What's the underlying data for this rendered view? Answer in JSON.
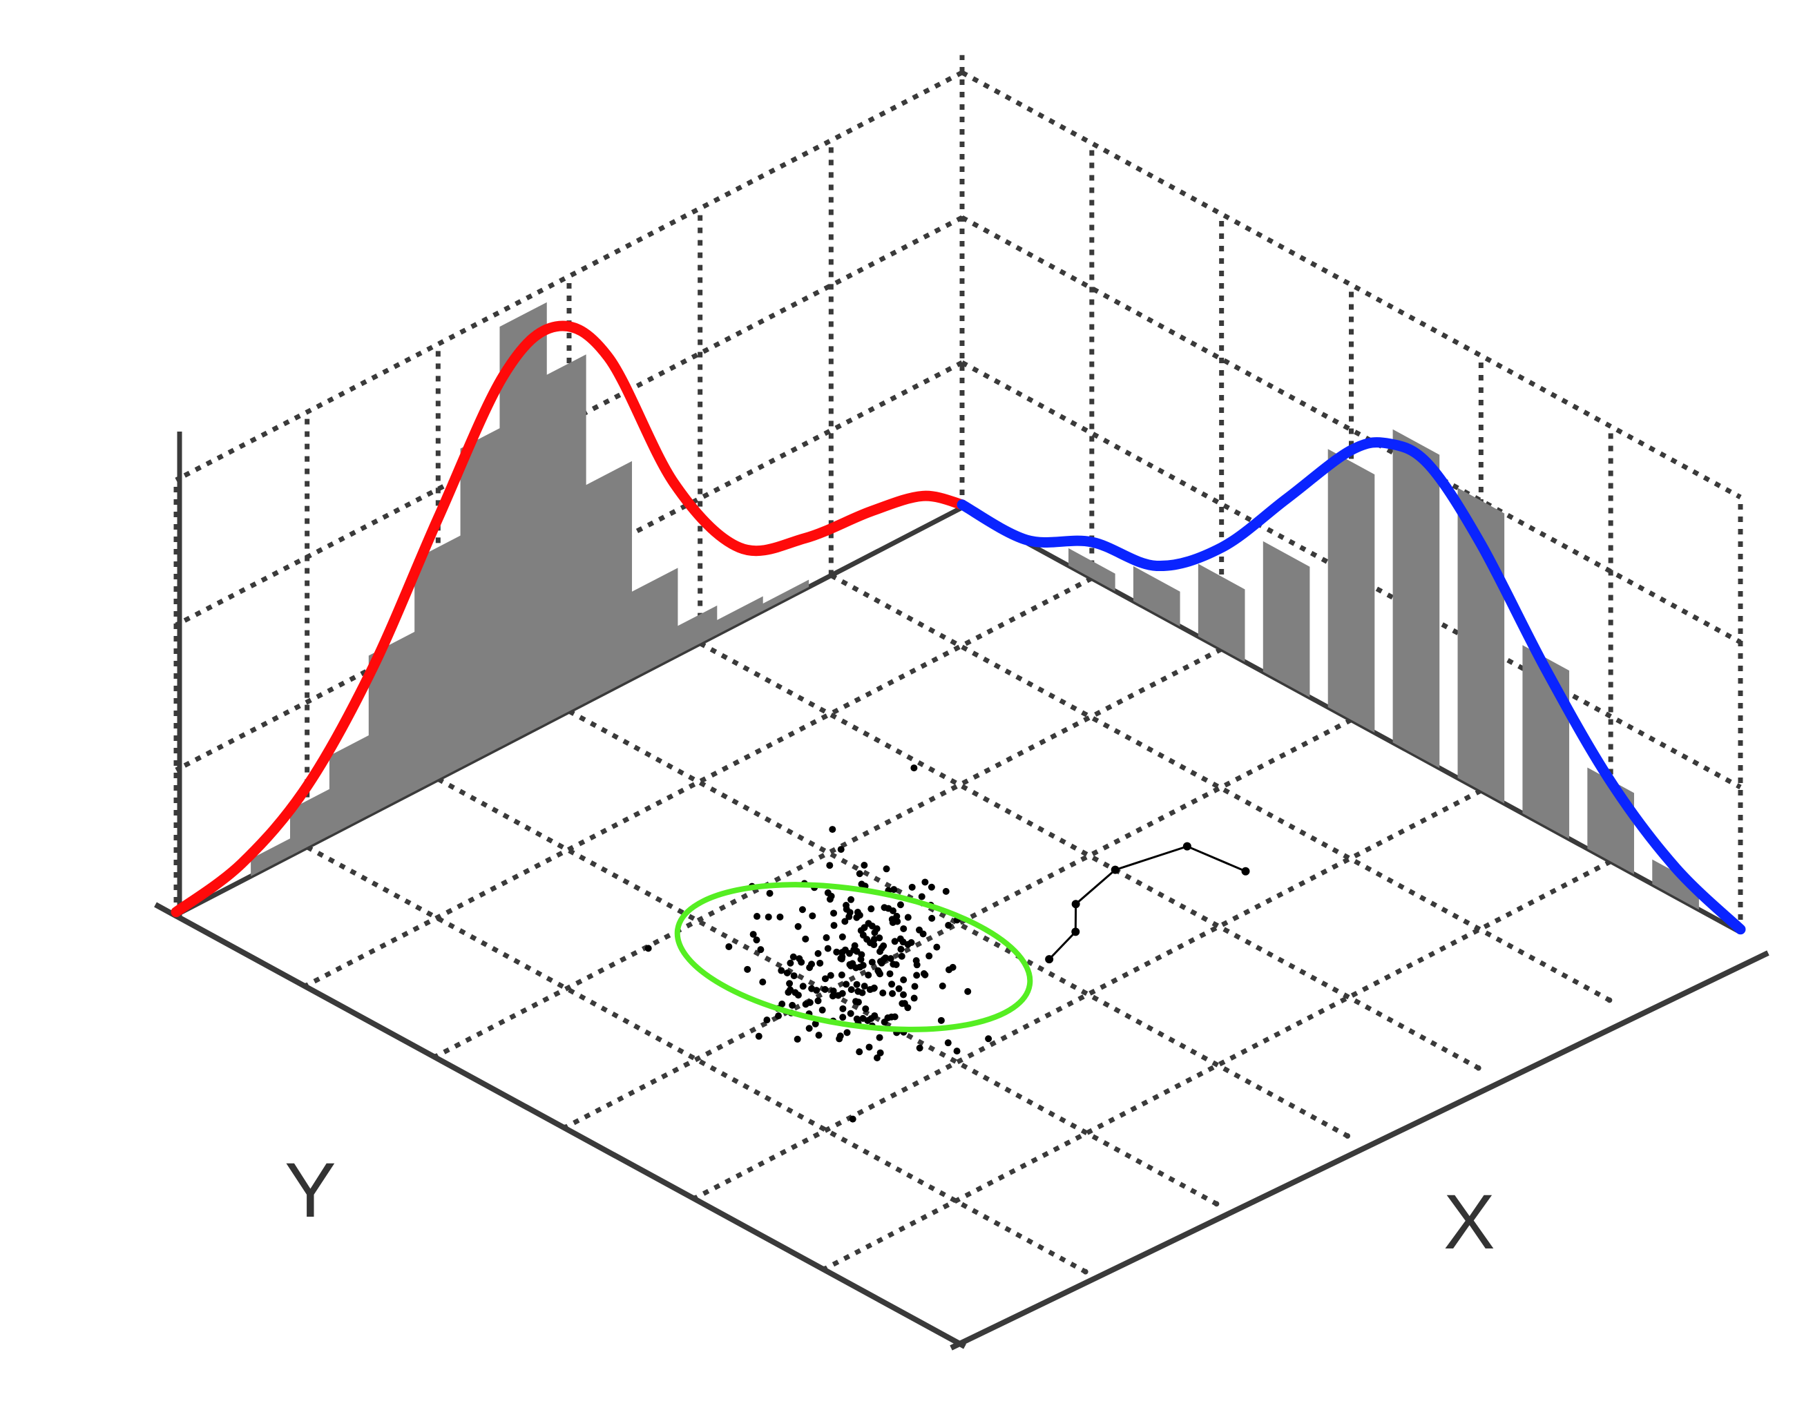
{
  "chart_data": {
    "type": "bar",
    "description_free": true,
    "axis_labels": {
      "x": "X",
      "y": "Y"
    },
    "grid": true,
    "grid_divisions": 6,
    "colors": {
      "x_curve": "#0a24ff",
      "y_curve": "#ff0a0a",
      "bars": "#808080",
      "ellipse": "#55ee22",
      "axes": "#3a3a3a",
      "grid": "#3a3a3a",
      "points": "#000000"
    },
    "x_marginal": {
      "bins": [
        1.0,
        1.5,
        2.0,
        2.5,
        3.0,
        3.5,
        4.0,
        4.5,
        5.0,
        5.5
      ],
      "bars": [
        0.12,
        0.24,
        0.5,
        0.9,
        1.78,
        2.16,
        2.0,
        1.16,
        0.56,
        0.17
      ],
      "curve": [
        [
          0,
          0.02
        ],
        [
          0.5,
          0.02
        ],
        [
          1.0,
          0.25
        ],
        [
          1.5,
          0.33
        ],
        [
          2.0,
          0.7
        ],
        [
          2.5,
          1.28
        ],
        [
          3.0,
          1.86
        ],
        [
          3.3,
          2.05
        ],
        [
          3.6,
          2.05
        ],
        [
          4.0,
          1.7
        ],
        [
          4.5,
          1.08
        ],
        [
          5.0,
          0.55
        ],
        [
          5.5,
          0.2
        ],
        [
          6.0,
          0.02
        ]
      ]
    },
    "y_marginal": {
      "bins": [
        0.75,
        1.05,
        1.35,
        1.65,
        2.0,
        2.35,
        2.65,
        2.95,
        3.3,
        3.65,
        3.95,
        4.3,
        4.65
      ],
      "bars": [
        0.12,
        0.32,
        0.55,
        1.1,
        1.6,
        2.2,
        2.9,
        2.4,
        1.5,
        0.6,
        0.2,
        0.1,
        0.05
      ],
      "curve": [
        [
          0,
          0.02
        ],
        [
          0.5,
          0.12
        ],
        [
          1.0,
          0.42
        ],
        [
          1.5,
          1.0
        ],
        [
          2.0,
          1.8
        ],
        [
          2.5,
          2.55
        ],
        [
          2.9,
          2.7
        ],
        [
          3.3,
          2.3
        ],
        [
          3.8,
          1.2
        ],
        [
          4.3,
          0.52
        ],
        [
          4.8,
          0.35
        ],
        [
          5.3,
          0.3
        ],
        [
          5.7,
          0.22
        ],
        [
          6.0,
          0.02
        ]
      ]
    },
    "trajectory": [
      [
        3.7,
        1.5
      ],
      [
        3.3,
        1.55
      ],
      [
        3.2,
        2.0
      ],
      [
        3.3,
        2.4
      ],
      [
        3.5,
        2.6
      ],
      [
        3.6,
        2.9
      ]
    ],
    "scatter_center": [
      2.9,
      3.7
    ],
    "scatter_count": 230,
    "confidence_ellipse": {
      "center": [
        2.85,
        3.65
      ],
      "major_along_x": 1.6,
      "minor": 0.7
    }
  }
}
